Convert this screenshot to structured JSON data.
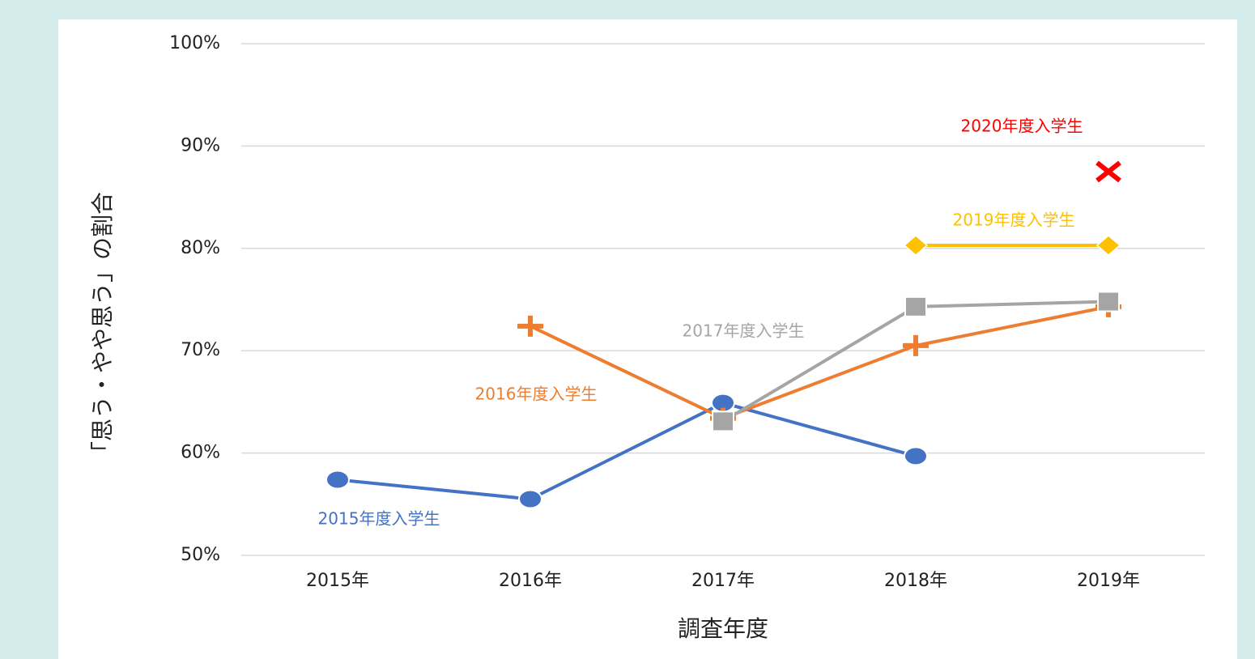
{
  "chart_data": {
    "type": "line",
    "x_label": "調査年度",
    "y_label": "「思う・やや思う」の割合",
    "categories": [
      "2015年",
      "2016年",
      "2017年",
      "2018年",
      "2019年"
    ],
    "series": [
      {
        "name": "2015年度入学生",
        "color": "#4472c4",
        "marker": "circle",
        "values": [
          57.4,
          55.5,
          64.9,
          59.7,
          null
        ]
      },
      {
        "name": "2016年度入学生",
        "color": "#ed7d31",
        "marker": "plus",
        "values": [
          null,
          72.4,
          63.4,
          70.5,
          74.3
        ]
      },
      {
        "name": "2017年度入学生",
        "color": "#a5a5a5",
        "marker": "square",
        "values": [
          null,
          null,
          63.1,
          74.3,
          74.8
        ]
      },
      {
        "name": "2019年度入学生",
        "color": "#ffc000",
        "marker": "diamond",
        "values": [
          null,
          null,
          null,
          80.3,
          80.3
        ]
      },
      {
        "name": "2020年度入学生",
        "color": "#ff0000",
        "marker": "x",
        "values": [
          null,
          null,
          null,
          null,
          87.5
        ]
      }
    ],
    "ylim": [
      50,
      100
    ],
    "yticks": [
      {
        "value": 50,
        "label": "50%"
      },
      {
        "value": 60,
        "label": "60%"
      },
      {
        "value": 70,
        "label": "70%"
      },
      {
        "value": 80,
        "label": "80%"
      },
      {
        "value": 90,
        "label": "90%"
      },
      {
        "value": 100,
        "label": "100%"
      }
    ],
    "grid": true
  }
}
